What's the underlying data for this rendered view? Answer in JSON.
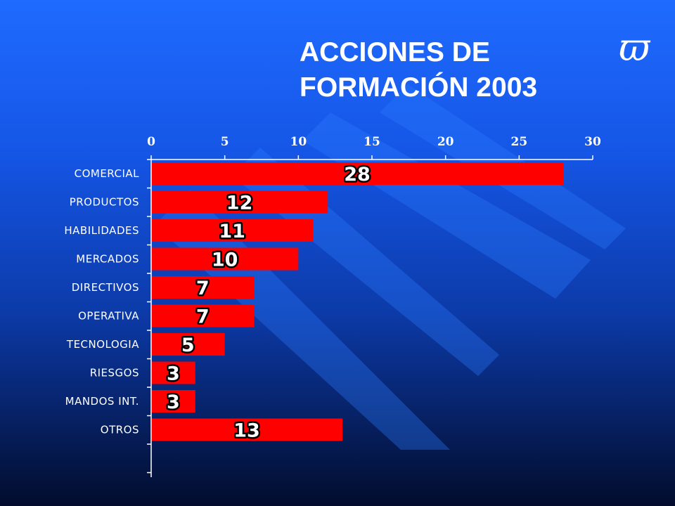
{
  "title": {
    "line1": "ACCIONES DE",
    "line2": "FORMACIÓN 2003"
  },
  "logo": {
    "glyph": "ϖ",
    "icon": "pi-variant-logo-icon"
  },
  "colors": {
    "bar": "#ff0000",
    "axis": "#ffffff",
    "text": "#ffffff",
    "label_outline": "#000000"
  },
  "chart_data": {
    "type": "bar",
    "orientation": "horizontal",
    "categories": [
      "COMERCIAL",
      "PRODUCTOS",
      "HABILIDADES",
      "MERCADOS",
      "DIRECTIVOS",
      "OPERATIVA",
      "TECNOLOGIA",
      "RIESGOS",
      "MANDOS INT.",
      "OTROS"
    ],
    "values": [
      28,
      12,
      11,
      10,
      7,
      7,
      5,
      3,
      3,
      13
    ],
    "xlim": [
      0,
      30
    ],
    "xticks": [
      0,
      5,
      10,
      15,
      20,
      25,
      30
    ],
    "xaxis_position": "top",
    "grid": false,
    "data_labels": true
  }
}
